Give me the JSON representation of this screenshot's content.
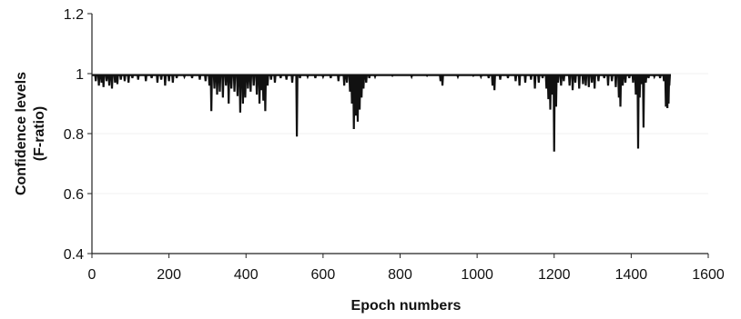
{
  "chart_data": {
    "type": "line",
    "xlabel": "Epoch numbers",
    "ylabel_lines": [
      "Confidence levels",
      "(F-ratio)"
    ],
    "xlim": [
      0,
      1600
    ],
    "ylim": [
      0.4,
      1.2
    ],
    "x_ticks": [
      0,
      200,
      400,
      600,
      800,
      1000,
      1200,
      1400,
      1600
    ],
    "y_ticks": [
      0.4,
      0.6,
      0.8,
      1,
      1.2
    ],
    "x_tick_labels": [
      "0",
      "200",
      "400",
      "600",
      "800",
      "1000",
      "1200",
      "1400",
      "1600"
    ],
    "y_tick_labels": [
      "0.4",
      "0.6",
      "0.8",
      "1",
      "1.2"
    ],
    "grid": false,
    "series": [
      {
        "color": "#111111",
        "x_range": [
          1,
          1500
        ],
        "baseline": 0.995,
        "dips": [
          [
            10,
            0.975
          ],
          [
            18,
            0.96
          ],
          [
            25,
            0.97
          ],
          [
            30,
            0.955
          ],
          [
            38,
            0.975
          ],
          [
            45,
            0.96
          ],
          [
            52,
            0.95
          ],
          [
            60,
            0.97
          ],
          [
            66,
            0.965
          ],
          [
            75,
            0.98
          ],
          [
            85,
            0.975
          ],
          [
            95,
            0.97
          ],
          [
            105,
            0.985
          ],
          [
            120,
            0.98
          ],
          [
            140,
            0.975
          ],
          [
            155,
            0.985
          ],
          [
            170,
            0.97
          ],
          [
            180,
            0.98
          ],
          [
            190,
            0.96
          ],
          [
            200,
            0.975
          ],
          [
            210,
            0.97
          ],
          [
            220,
            0.985
          ],
          [
            240,
            0.99
          ],
          [
            260,
            0.985
          ],
          [
            280,
            0.98
          ],
          [
            295,
            0.975
          ],
          [
            305,
            0.96
          ],
          [
            310,
            0.875
          ],
          [
            318,
            0.95
          ],
          [
            325,
            0.93
          ],
          [
            332,
            0.94
          ],
          [
            340,
            0.92
          ],
          [
            348,
            0.96
          ],
          [
            355,
            0.9
          ],
          [
            362,
            0.95
          ],
          [
            370,
            0.94
          ],
          [
            378,
            0.925
          ],
          [
            385,
            0.87
          ],
          [
            392,
            0.9
          ],
          [
            398,
            0.92
          ],
          [
            405,
            0.95
          ],
          [
            412,
            0.94
          ],
          [
            420,
            0.96
          ],
          [
            428,
            0.93
          ],
          [
            435,
            0.9
          ],
          [
            440,
            0.945
          ],
          [
            445,
            0.91
          ],
          [
            450,
            0.875
          ],
          [
            456,
            0.96
          ],
          [
            465,
            0.98
          ],
          [
            475,
            0.97
          ],
          [
            490,
            0.985
          ],
          [
            505,
            0.98
          ],
          [
            520,
            0.97
          ],
          [
            532,
            0.79
          ],
          [
            540,
            0.985
          ],
          [
            560,
            0.99
          ],
          [
            580,
            0.985
          ],
          [
            600,
            0.99
          ],
          [
            620,
            0.985
          ],
          [
            640,
            0.975
          ],
          [
            655,
            0.96
          ],
          [
            662,
            0.97
          ],
          [
            670,
            0.94
          ],
          [
            675,
            0.9
          ],
          [
            680,
            0.815
          ],
          [
            685,
            0.86
          ],
          [
            690,
            0.84
          ],
          [
            695,
            0.88
          ],
          [
            700,
            0.92
          ],
          [
            705,
            0.95
          ],
          [
            712,
            0.97
          ],
          [
            720,
            0.985
          ],
          [
            735,
            0.99
          ],
          [
            780,
            0.993
          ],
          [
            830,
            0.99
          ],
          [
            870,
            0.993
          ],
          [
            905,
            0.975
          ],
          [
            910,
            0.96
          ],
          [
            950,
            0.99
          ],
          [
            990,
            0.993
          ],
          [
            1010,
            0.99
          ],
          [
            1030,
            0.985
          ],
          [
            1040,
            0.96
          ],
          [
            1045,
            0.945
          ],
          [
            1060,
            0.98
          ],
          [
            1080,
            0.985
          ],
          [
            1100,
            0.975
          ],
          [
            1110,
            0.96
          ],
          [
            1125,
            0.97
          ],
          [
            1140,
            0.98
          ],
          [
            1150,
            0.95
          ],
          [
            1160,
            0.97
          ],
          [
            1170,
            0.985
          ],
          [
            1180,
            0.95
          ],
          [
            1185,
            0.915
          ],
          [
            1190,
            0.88
          ],
          [
            1195,
            0.93
          ],
          [
            1200,
            0.74
          ],
          [
            1205,
            0.89
          ],
          [
            1210,
            0.97
          ],
          [
            1218,
            0.96
          ],
          [
            1225,
            0.975
          ],
          [
            1240,
            0.96
          ],
          [
            1248,
            0.945
          ],
          [
            1255,
            0.97
          ],
          [
            1265,
            0.95
          ],
          [
            1275,
            0.965
          ],
          [
            1282,
            0.96
          ],
          [
            1290,
            0.955
          ],
          [
            1298,
            0.97
          ],
          [
            1305,
            0.95
          ],
          [
            1315,
            0.975
          ],
          [
            1330,
            0.985
          ],
          [
            1340,
            0.96
          ],
          [
            1350,
            0.975
          ],
          [
            1360,
            0.955
          ],
          [
            1368,
            0.92
          ],
          [
            1372,
            0.89
          ],
          [
            1378,
            0.96
          ],
          [
            1385,
            0.97
          ],
          [
            1395,
            0.985
          ],
          [
            1405,
            0.97
          ],
          [
            1412,
            0.93
          ],
          [
            1418,
            0.75
          ],
          [
            1422,
            0.92
          ],
          [
            1428,
            0.965
          ],
          [
            1432,
            0.82
          ],
          [
            1438,
            0.97
          ],
          [
            1445,
            0.985
          ],
          [
            1460,
            0.99
          ],
          [
            1475,
            0.985
          ],
          [
            1485,
            0.975
          ],
          [
            1490,
            0.89
          ],
          [
            1494,
            0.885
          ],
          [
            1497,
            0.9
          ],
          [
            1499,
            0.96
          ]
        ]
      }
    ]
  }
}
